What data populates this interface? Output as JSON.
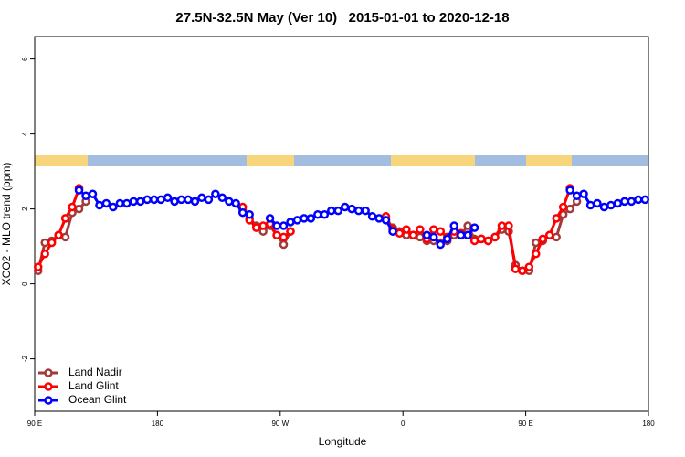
{
  "chart_data": {
    "type": "line",
    "title": "27.5N-32.5N May (Ver 10)   2015-01-01 to 2020-12-18",
    "x_label": "Longitude",
    "y_label": "XCO2 - MLO trend (ppm)",
    "xlim": [
      90,
      540
    ],
    "xticks": [
      {
        "value": 90,
        "label": "90 E"
      },
      {
        "value": 180,
        "label": "180"
      },
      {
        "value": 270,
        "label": "90 W"
      },
      {
        "value": 360,
        "label": "0"
      },
      {
        "value": 450,
        "label": "90 E"
      },
      {
        "value": 540,
        "label": "180"
      }
    ],
    "ylim": [
      -3.4,
      6.6
    ],
    "yticks": [
      -2,
      0,
      2,
      4,
      6
    ],
    "legend": "bottom-left",
    "series": [
      {
        "name": "Land Nadir",
        "color": "#a33a3a",
        "x": [
          92.5,
          97.5,
          102.5,
          107.5,
          112.5,
          117.5,
          122.5,
          127.5,
          182.5,
          242.5,
          247.5,
          252.5,
          257.5,
          262.5,
          267.5,
          272.5,
          277.5,
          312.5,
          347.5,
          352.5,
          357.5,
          362.5,
          367.5,
          372.5,
          377.5,
          382.5,
          387.5,
          392.5,
          397.5,
          402.5,
          407.5,
          412.5,
          417.5,
          422.5,
          427.5,
          432.5,
          437.5,
          442.5,
          447.5,
          452.5,
          457.5,
          462.5,
          467.5,
          472.5,
          477.5,
          482.5,
          487.5
        ],
        "values": [
          0.35,
          1.1,
          1.15,
          1.3,
          1.25,
          1.9,
          2.0,
          2.2,
          null,
          1.95,
          1.75,
          1.55,
          1.4,
          1.55,
          1.3,
          1.05,
          1.4,
          null,
          1.75,
          1.5,
          1.4,
          1.3,
          1.3,
          1.25,
          1.15,
          1.15,
          1.1,
          1.15,
          1.3,
          1.3,
          1.55,
          1.2,
          1.2,
          1.15,
          1.25,
          1.45,
          1.4,
          0.5,
          0.35,
          0.35,
          1.1,
          1.15,
          1.3,
          1.25,
          1.85,
          2.0,
          2.2
        ]
      },
      {
        "name": "Land Glint",
        "color": "#ff0000",
        "x": [
          92.5,
          97.5,
          102.5,
          107.5,
          112.5,
          117.5,
          122.5,
          182.5,
          242.5,
          247.5,
          252.5,
          257.5,
          262.5,
          267.5,
          272.5,
          277.5,
          312.5,
          347.5,
          352.5,
          357.5,
          362.5,
          367.5,
          372.5,
          377.5,
          382.5,
          387.5,
          392.5,
          397.5,
          402.5,
          407.5,
          412.5,
          417.5,
          422.5,
          427.5,
          432.5,
          437.5,
          442.5,
          447.5,
          452.5,
          457.5,
          462.5,
          467.5,
          472.5,
          477.5,
          482.5
        ],
        "values": [
          0.45,
          0.8,
          1.1,
          1.3,
          1.75,
          2.05,
          2.55,
          null,
          2.05,
          1.7,
          1.5,
          1.55,
          1.6,
          1.3,
          1.25,
          1.4,
          null,
          1.8,
          1.45,
          1.35,
          1.45,
          1.3,
          1.45,
          1.2,
          1.45,
          1.4,
          1.25,
          1.4,
          1.35,
          1.3,
          1.15,
          1.2,
          1.15,
          1.25,
          1.55,
          1.55,
          0.4,
          0.35,
          0.45,
          0.8,
          1.2,
          1.3,
          1.75,
          2.05,
          2.55
        ]
      },
      {
        "name": "Ocean Glint",
        "color": "#0000ff",
        "x": [
          122.5,
          127.5,
          132.5,
          137.5,
          142.5,
          147.5,
          152.5,
          157.5,
          162.5,
          167.5,
          172.5,
          177.5,
          182.5,
          187.5,
          192.5,
          197.5,
          202.5,
          207.5,
          212.5,
          217.5,
          222.5,
          227.5,
          232.5,
          237.5,
          242.5,
          247.5,
          255,
          262.5,
          267.5,
          272.5,
          277.5,
          282.5,
          287.5,
          292.5,
          297.5,
          302.5,
          307.5,
          312.5,
          317.5,
          322.5,
          327.5,
          332.5,
          337.5,
          342.5,
          347.5,
          352.5,
          365,
          377.5,
          382.5,
          387.5,
          392.5,
          397.5,
          402.5,
          407.5,
          412.5,
          447.5,
          482.5,
          487.5,
          492.5,
          497.5,
          502.5,
          507.5,
          512.5,
          517.5,
          522.5,
          527.5,
          532.5,
          537.5
        ],
        "values": [
          2.5,
          2.35,
          2.4,
          2.1,
          2.15,
          2.05,
          2.15,
          2.15,
          2.2,
          2.2,
          2.25,
          2.25,
          2.25,
          2.3,
          2.2,
          2.25,
          2.25,
          2.2,
          2.3,
          2.25,
          2.4,
          2.3,
          2.2,
          2.15,
          1.9,
          1.85,
          null,
          1.75,
          1.55,
          1.55,
          1.65,
          1.7,
          1.75,
          1.75,
          1.85,
          1.85,
          1.95,
          1.95,
          2.05,
          2.0,
          1.95,
          1.95,
          1.8,
          1.75,
          1.7,
          1.4,
          null,
          1.3,
          1.25,
          1.05,
          1.2,
          1.55,
          1.3,
          1.3,
          1.5,
          null,
          2.5,
          2.35,
          2.4,
          2.1,
          2.15,
          2.05,
          2.1,
          2.15,
          2.2,
          2.2,
          2.25,
          2.25
        ]
      }
    ]
  }
}
